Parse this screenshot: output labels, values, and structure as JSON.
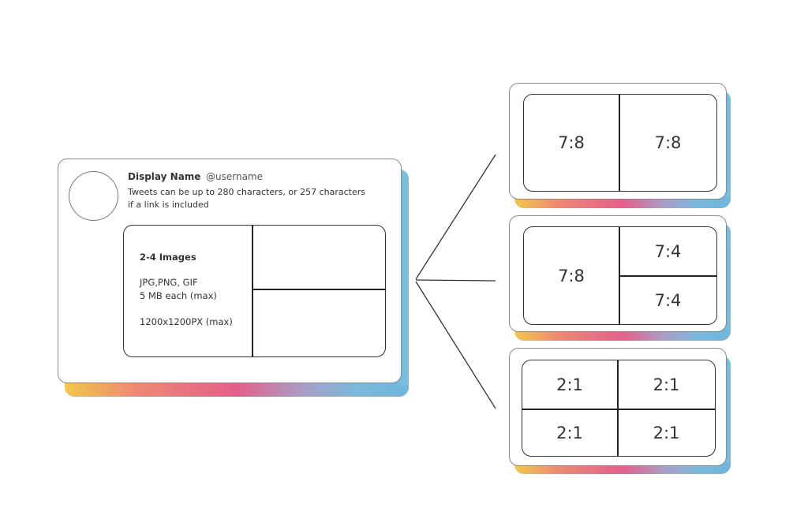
{
  "tweet": {
    "display_name": "Display Name",
    "username": "@username",
    "body_line1": "Tweets can be up to 280 characters, or 257 characters",
    "body_line2": "if a link is included",
    "images_title": "2-4 Images",
    "formats": "JPG,PNG, GIF",
    "size": "5 MB each (max)",
    "dimensions": "1200x1200PX (max)"
  },
  "layouts": [
    {
      "cells": [
        "7:8",
        "7:8"
      ]
    },
    {
      "cells": [
        "7:8",
        "7:4",
        "7:4"
      ]
    },
    {
      "cells": [
        "2:1",
        "2:1",
        "2:1",
        "2:1"
      ]
    }
  ],
  "colors": {
    "gradient": [
      "#f2c84b",
      "#e45f8a",
      "#a7a0c8",
      "#6fb6de"
    ]
  }
}
